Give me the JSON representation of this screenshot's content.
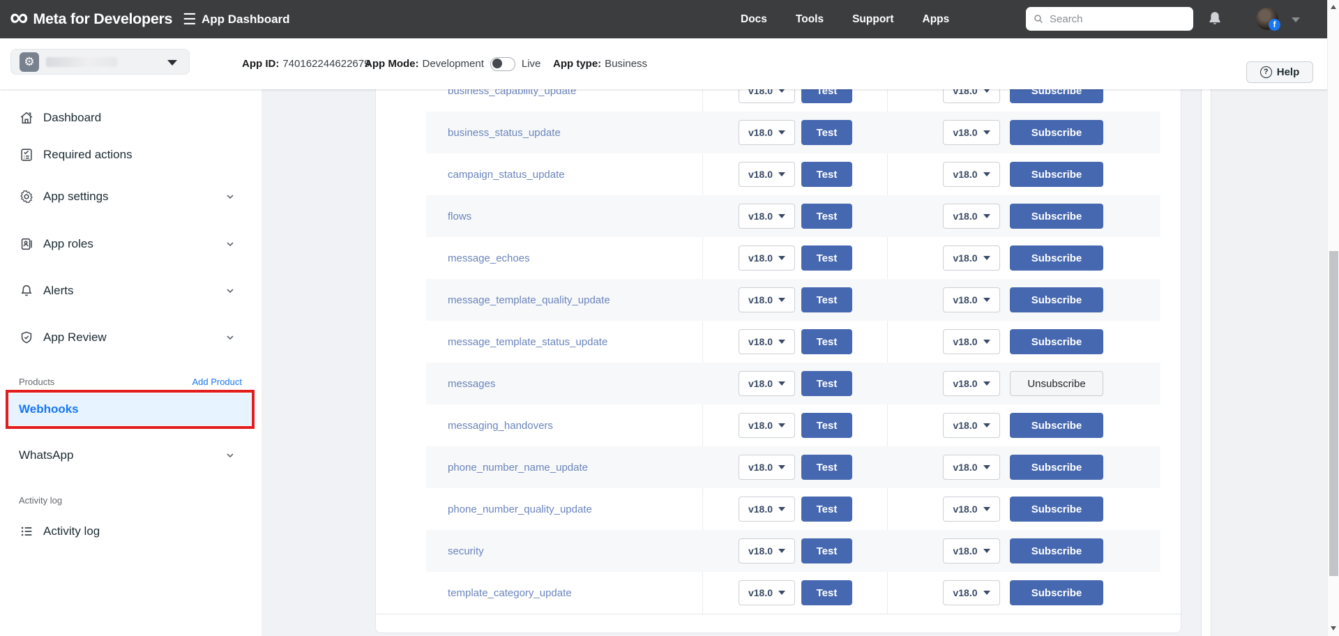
{
  "navbar": {
    "brand": "Meta for Developers",
    "dashboard_label": "App Dashboard",
    "links": [
      {
        "label": "Docs"
      },
      {
        "label": "Tools"
      },
      {
        "label": "Support"
      },
      {
        "label": "Apps"
      }
    ],
    "search_placeholder": "Search",
    "icons": [
      "meta-infinity-icon",
      "hamburger-icon",
      "search-icon",
      "bell-icon",
      "avatar",
      "facebook-badge",
      "chevron-down-icon"
    ]
  },
  "appbar": {
    "app_id_label": "App ID:",
    "app_id_value": "740162244622679",
    "app_mode_label": "App Mode:",
    "mode_development": "Development",
    "mode_live": "Live",
    "app_type_label": "App type:",
    "app_type_value": "Business",
    "help_label": "Help",
    "help_icon": "question-circle-icon",
    "app_selector_icon": "gear-app-icon"
  },
  "sidebar": {
    "items": [
      {
        "label": "Dashboard",
        "icon": "home-icon",
        "chevron": false
      },
      {
        "label": "Required actions",
        "icon": "checklist-icon",
        "chevron": false
      },
      {
        "label": "App settings",
        "icon": "gear-icon",
        "chevron": true
      },
      {
        "label": "App roles",
        "icon": "id-card-icon",
        "chevron": true
      },
      {
        "label": "Alerts",
        "icon": "bell-outline-icon",
        "chevron": true
      },
      {
        "label": "App Review",
        "icon": "shield-check-icon",
        "chevron": true
      }
    ],
    "products_label": "Products",
    "add_product_label": "Add Product",
    "webhooks_label": "Webhooks",
    "whatsapp_label": "WhatsApp",
    "activity_section_label": "Activity log",
    "activity_item_label": "Activity log",
    "activity_item_icon": "list-icon"
  },
  "table": {
    "version_label": "v18.0",
    "test_label": "Test",
    "subscribe_label": "Subscribe",
    "unsubscribe_label": "Unsubscribe",
    "rows": [
      {
        "field": "business_capability_update",
        "subscribed": false
      },
      {
        "field": "business_status_update",
        "subscribed": false
      },
      {
        "field": "campaign_status_update",
        "subscribed": false
      },
      {
        "field": "flows",
        "subscribed": false
      },
      {
        "field": "message_echoes",
        "subscribed": false
      },
      {
        "field": "message_template_quality_update",
        "subscribed": false
      },
      {
        "field": "message_template_status_update",
        "subscribed": false
      },
      {
        "field": "messages",
        "subscribed": true
      },
      {
        "field": "messaging_handovers",
        "subscribed": false
      },
      {
        "field": "phone_number_name_update",
        "subscribed": false
      },
      {
        "field": "phone_number_quality_update",
        "subscribed": false
      },
      {
        "field": "security",
        "subscribed": false
      },
      {
        "field": "template_category_update",
        "subscribed": false
      }
    ]
  },
  "colors": {
    "navbar_bg": "#3b3d3e",
    "accent_blue": "#1877f2",
    "button_blue": "#4668b0",
    "field_link": "#6b85bd",
    "webhooks_highlight_bg": "#e7f3ff",
    "annotation_red": "#e11d1d",
    "stripe": "#f7f8f9",
    "page_bg": "#f0f2f5"
  }
}
